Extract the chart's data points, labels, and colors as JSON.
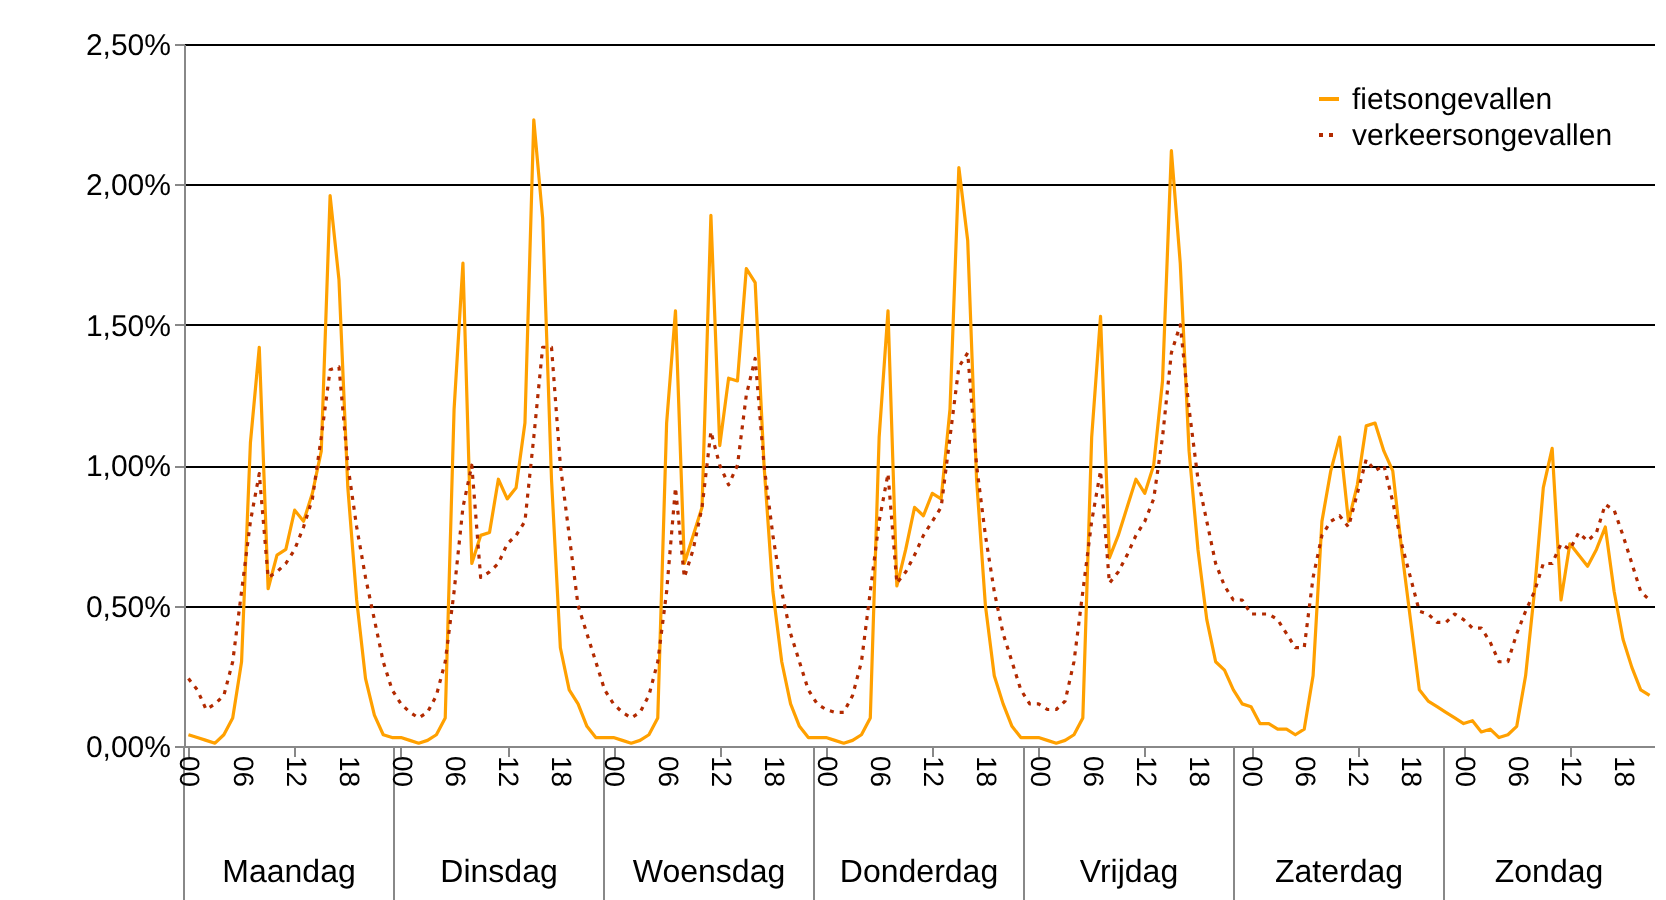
{
  "chart_data": {
    "type": "line",
    "categories": [
      "00",
      null,
      null,
      null,
      null,
      null,
      "06",
      null,
      null,
      null,
      null,
      null,
      "12",
      null,
      null,
      null,
      null,
      null,
      "18",
      null,
      null,
      null,
      null,
      null,
      "00",
      null,
      null,
      null,
      null,
      null,
      "06",
      null,
      null,
      null,
      null,
      null,
      "12",
      null,
      null,
      null,
      null,
      null,
      "18",
      null,
      null,
      null,
      null,
      null,
      "00",
      null,
      null,
      null,
      null,
      null,
      "06",
      null,
      null,
      null,
      null,
      null,
      "12",
      null,
      null,
      null,
      null,
      null,
      "18",
      null,
      null,
      null,
      null,
      null,
      "00",
      null,
      null,
      null,
      null,
      null,
      "06",
      null,
      null,
      null,
      null,
      null,
      "12",
      null,
      null,
      null,
      null,
      null,
      "18",
      null,
      null,
      null,
      null,
      null,
      "00",
      null,
      null,
      null,
      null,
      null,
      "06",
      null,
      null,
      null,
      null,
      null,
      "12",
      null,
      null,
      null,
      null,
      null,
      "18",
      null,
      null,
      null,
      null,
      null,
      "00",
      null,
      null,
      null,
      null,
      null,
      "06",
      null,
      null,
      null,
      null,
      null,
      "12",
      null,
      null,
      null,
      null,
      null,
      "18",
      null,
      null,
      null,
      null,
      null,
      "00",
      null,
      null,
      null,
      null,
      null,
      "06",
      null,
      null,
      null,
      null,
      null,
      "12",
      null,
      null,
      null,
      null,
      null,
      "18",
      null,
      null,
      null
    ],
    "series": [
      {
        "name": "fietsongevallen",
        "color": "#ffa000",
        "line_style": "solid",
        "values": [
          0.04,
          0.03,
          0.02,
          0.01,
          0.04,
          0.1,
          0.3,
          1.08,
          1.42,
          0.56,
          0.68,
          0.7,
          0.84,
          0.8,
          0.9,
          1.05,
          1.96,
          1.66,
          0.92,
          0.52,
          0.24,
          0.11,
          0.04,
          0.03,
          0.03,
          0.02,
          0.01,
          0.02,
          0.04,
          0.1,
          1.2,
          1.72,
          0.65,
          0.75,
          0.76,
          0.95,
          0.88,
          0.92,
          1.15,
          2.23,
          1.88,
          0.95,
          0.35,
          0.2,
          0.15,
          0.07,
          0.03,
          0.03,
          0.03,
          0.02,
          0.01,
          0.02,
          0.04,
          0.1,
          1.15,
          1.55,
          0.65,
          0.75,
          0.85,
          1.89,
          1.07,
          1.31,
          1.3,
          1.7,
          1.65,
          1.0,
          0.55,
          0.3,
          0.15,
          0.07,
          0.03,
          0.03,
          0.03,
          0.02,
          0.01,
          0.02,
          0.04,
          0.1,
          1.1,
          1.55,
          0.57,
          0.7,
          0.85,
          0.82,
          0.9,
          0.88,
          1.2,
          2.06,
          1.8,
          0.95,
          0.5,
          0.25,
          0.15,
          0.07,
          0.03,
          0.03,
          0.03,
          0.02,
          0.01,
          0.02,
          0.04,
          0.1,
          1.1,
          1.53,
          0.67,
          0.75,
          0.85,
          0.95,
          0.9,
          1.0,
          1.3,
          2.12,
          1.72,
          1.05,
          0.7,
          0.45,
          0.3,
          0.27,
          0.2,
          0.15,
          0.14,
          0.08,
          0.08,
          0.06,
          0.06,
          0.04,
          0.06,
          0.25,
          0.8,
          0.98,
          1.1,
          0.8,
          0.93,
          1.14,
          1.15,
          1.05,
          0.98,
          0.7,
          0.45,
          0.2,
          0.16,
          0.14,
          0.12,
          0.1,
          0.08,
          0.09,
          0.05,
          0.06,
          0.03,
          0.04,
          0.07,
          0.25,
          0.55,
          0.92,
          1.06,
          0.52,
          0.72,
          0.68,
          0.64,
          0.7,
          0.78,
          0.55,
          0.38,
          0.28,
          0.2,
          0.18
        ]
      },
      {
        "name": "verkeersongevallen",
        "color": "#b22a00",
        "line_style": "dotted",
        "values": [
          0.24,
          0.2,
          0.13,
          0.15,
          0.18,
          0.3,
          0.55,
          0.8,
          0.97,
          0.6,
          0.62,
          0.65,
          0.7,
          0.78,
          0.88,
          1.1,
          1.34,
          1.35,
          1.0,
          0.78,
          0.6,
          0.45,
          0.3,
          0.2,
          0.15,
          0.12,
          0.1,
          0.12,
          0.18,
          0.3,
          0.55,
          0.85,
          1.0,
          0.6,
          0.62,
          0.65,
          0.72,
          0.75,
          0.8,
          1.1,
          1.42,
          1.42,
          1.0,
          0.75,
          0.5,
          0.4,
          0.3,
          0.2,
          0.15,
          0.12,
          0.1,
          0.12,
          0.18,
          0.3,
          0.55,
          0.92,
          0.6,
          0.7,
          0.85,
          1.12,
          1.0,
          0.93,
          1.0,
          1.25,
          1.38,
          1.0,
          0.75,
          0.55,
          0.4,
          0.3,
          0.2,
          0.15,
          0.13,
          0.12,
          0.12,
          0.18,
          0.3,
          0.55,
          0.8,
          0.97,
          0.58,
          0.62,
          0.68,
          0.75,
          0.8,
          0.85,
          1.1,
          1.35,
          1.4,
          1.0,
          0.75,
          0.55,
          0.4,
          0.3,
          0.2,
          0.15,
          0.15,
          0.13,
          0.13,
          0.16,
          0.3,
          0.55,
          0.8,
          0.98,
          0.58,
          0.62,
          0.68,
          0.75,
          0.8,
          0.88,
          1.1,
          1.4,
          1.5,
          1.2,
          0.95,
          0.8,
          0.65,
          0.57,
          0.52,
          0.52,
          0.47,
          0.47,
          0.47,
          0.45,
          0.4,
          0.35,
          0.35,
          0.6,
          0.75,
          0.8,
          0.82,
          0.78,
          0.9,
          1.02,
          0.98,
          1.0,
          0.87,
          0.72,
          0.6,
          0.48,
          0.47,
          0.44,
          0.44,
          0.47,
          0.45,
          0.42,
          0.42,
          0.37,
          0.3,
          0.3,
          0.4,
          0.48,
          0.55,
          0.65,
          0.65,
          0.72,
          0.7,
          0.76,
          0.73,
          0.76,
          0.86,
          0.84,
          0.75,
          0.65,
          0.55,
          0.52
        ]
      }
    ],
    "annotations": [
      "Maandag",
      "Dinsdag",
      "Woensdag",
      "Donderdag",
      "Vrijdag",
      "Zaterdag",
      "Zondag"
    ],
    "ylim": [
      0,
      2.5
    ],
    "yticks": [
      {
        "value": 0,
        "label": "0,00%"
      },
      {
        "value": 0.5,
        "label": "0,50%"
      },
      {
        "value": 1,
        "label": "1,00%"
      },
      {
        "value": 1.5,
        "label": "1,50%"
      },
      {
        "value": 2,
        "label": "2,00%"
      },
      {
        "value": 2.5,
        "label": "2,50%"
      }
    ],
    "grid": "y",
    "legend": "top right",
    "marker": "none"
  }
}
